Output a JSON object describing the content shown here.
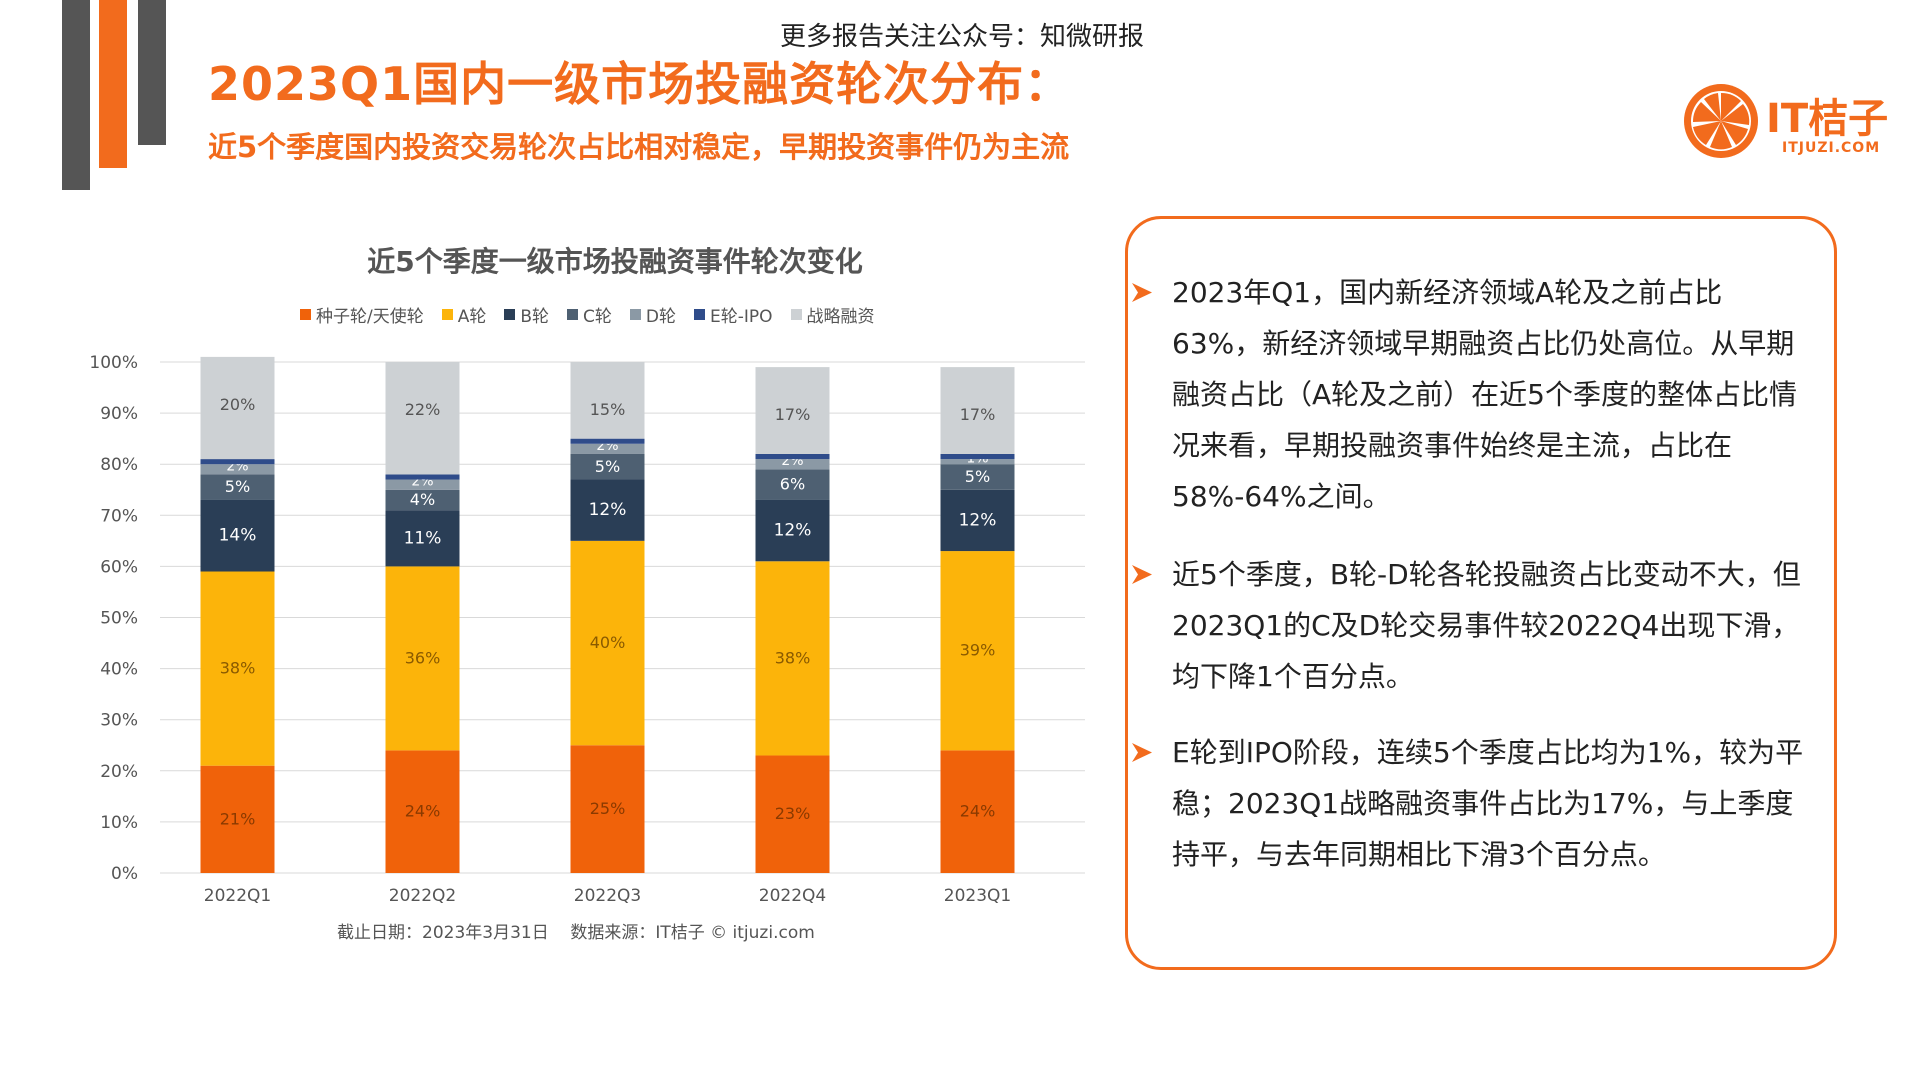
{
  "header": {
    "watermark": "更多报告关注公众号：知微研报",
    "title": "2023Q1国内一级市场投融资轮次分布：",
    "subtitle": "近5个季度国内投资交易轮次占比相对稳定，早期投资事件仍为主流"
  },
  "logo": {
    "name": "IT桔子",
    "url_text": "ITJUZI.COM"
  },
  "colors": {
    "accent": "#F26B1D"
  },
  "chart_data": {
    "type": "bar",
    "stacked": true,
    "title": "近5个季度一级市场投融资事件轮次变化",
    "categories": [
      "2022Q1",
      "2022Q2",
      "2022Q3",
      "2022Q4",
      "2023Q1"
    ],
    "y_ticks": [
      "0%",
      "10%",
      "20%",
      "30%",
      "40%",
      "50%",
      "60%",
      "70%",
      "80%",
      "90%",
      "100%"
    ],
    "ylim": [
      0,
      100
    ],
    "grid": true,
    "legend_position": "top",
    "series": [
      {
        "name": "种子轮/天使轮",
        "color": "#F0620A",
        "values": [
          21,
          24,
          25,
          23,
          24
        ],
        "labels": [
          "21%",
          "24%",
          "25%",
          "23%",
          "24%"
        ]
      },
      {
        "name": "A轮",
        "color": "#FCB40A",
        "values": [
          38,
          36,
          40,
          38,
          39
        ],
        "labels": [
          "38%",
          "36%",
          "40%",
          "38%",
          "39%"
        ]
      },
      {
        "name": "B轮",
        "color": "#2A3E56",
        "values": [
          14,
          11,
          12,
          12,
          12
        ],
        "labels": [
          "14%",
          "11%",
          "12%",
          "12%",
          "12%"
        ]
      },
      {
        "name": "C轮",
        "color": "#4E6072",
        "values": [
          5,
          4,
          5,
          6,
          5
        ],
        "labels": [
          "5%",
          "4%",
          "5%",
          "6%",
          "5%"
        ]
      },
      {
        "name": "D轮",
        "color": "#8B99A5",
        "values": [
          2,
          2,
          2,
          2,
          1
        ],
        "labels": [
          "2%",
          "2%",
          "2%",
          "2%",
          "1%"
        ]
      },
      {
        "name": "E轮-IPO",
        "color": "#2F4C8A",
        "values": [
          1,
          1,
          1,
          1,
          1
        ],
        "labels": [
          "1%",
          "1%",
          "1%",
          "1%",
          "1%"
        ]
      },
      {
        "name": "战略融资",
        "color": "#CDD1D4",
        "values": [
          20,
          22,
          15,
          17,
          17
        ],
        "labels": [
          "20%",
          "22%",
          "15%",
          "17%",
          "17%"
        ]
      }
    ],
    "source_note": "截止日期：2023年3月31日    数据来源：IT桔子 © itjuzi.com"
  },
  "bullets": [
    "2023年Q1，国内新经济领域A轮及之前占比63%，新经济领域早期融资占比仍处高位。从早期融资占比（A轮及之前）在近5个季度的整体占比情况来看，早期投融资事件始终是主流，占比在58%-64%之间。",
    "近5个季度，B轮-D轮各轮投融资占比变动不大，但2023Q1的C及D轮交易事件较2022Q4出现下滑，均下降1个百分点。",
    "E轮到IPO阶段，连续5个季度占比均为1%，较为平稳；2023Q1战略融资事件占比为17%，与上季度持平，与去年同期相比下滑3个百分点。"
  ]
}
